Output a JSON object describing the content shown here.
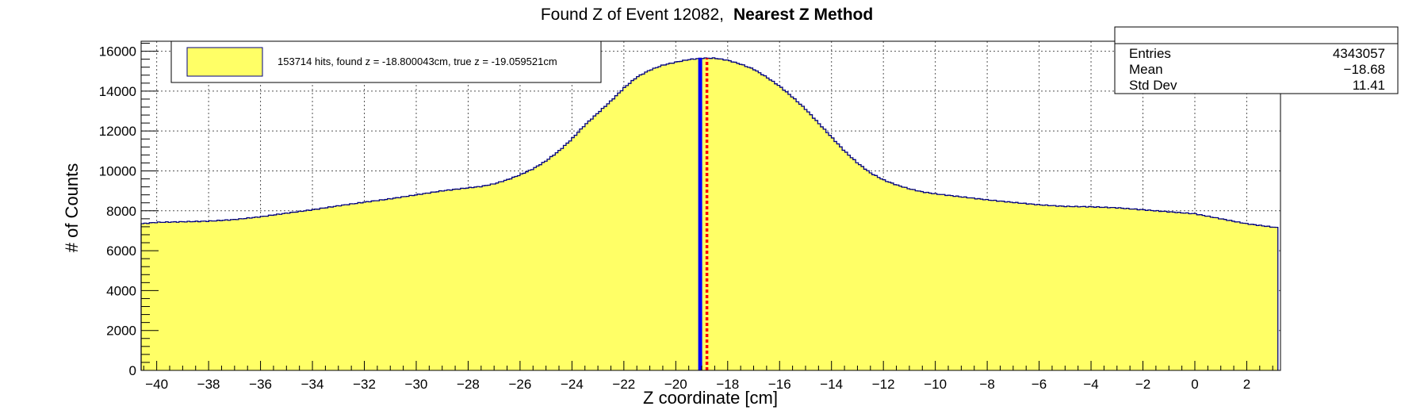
{
  "chart_data": {
    "type": "area",
    "title": "Found Z of Event 12082,",
    "title_bold": "Nearest Z Method",
    "xlabel": "Z coordinate [cm]",
    "ylabel": "# of Counts",
    "xlim": [
      -40.6,
      3.3
    ],
    "ylim": [
      0,
      16500
    ],
    "x_ticks": [
      -40,
      -38,
      -36,
      -34,
      -32,
      -30,
      -28,
      -26,
      -24,
      -22,
      -20,
      -18,
      -16,
      -14,
      -12,
      -10,
      -8,
      -6,
      -4,
      -2,
      0,
      2
    ],
    "y_ticks": [
      0,
      2000,
      4000,
      6000,
      8000,
      10000,
      12000,
      14000,
      16000
    ],
    "grid": true,
    "fill_color": "#ffff66",
    "line_color": "#000080",
    "series": [
      {
        "name": "153714 hits, found z = -18.800043cm, true z = -19.059521cm",
        "x": [
          -40.6,
          -40.0,
          -39.0,
          -38.0,
          -37.0,
          -36.0,
          -35.0,
          -34.0,
          -33.0,
          -32.0,
          -31.0,
          -30.0,
          -29.0,
          -28.0,
          -27.5,
          -27.0,
          -26.5,
          -26.0,
          -25.5,
          -25.0,
          -24.5,
          -24.0,
          -23.5,
          -23.0,
          -22.5,
          -22.0,
          -21.5,
          -21.0,
          -20.5,
          -20.0,
          -19.5,
          -19.0,
          -18.5,
          -18.0,
          -17.5,
          -17.0,
          -16.5,
          -16.0,
          -15.5,
          -15.0,
          -14.5,
          -14.0,
          -13.5,
          -13.0,
          -12.5,
          -12.0,
          -11.5,
          -11.0,
          -10.5,
          -10.0,
          -9.0,
          -8.0,
          -7.0,
          -6.0,
          -5.0,
          -4.0,
          -3.0,
          -2.0,
          -1.0,
          0.0,
          1.0,
          2.0,
          3.2
        ],
        "y": [
          7350,
          7420,
          7450,
          7480,
          7560,
          7700,
          7880,
          8050,
          8250,
          8430,
          8600,
          8800,
          9000,
          9150,
          9220,
          9350,
          9550,
          9800,
          10100,
          10500,
          11000,
          11600,
          12300,
          12900,
          13500,
          14150,
          14700,
          15050,
          15300,
          15450,
          15580,
          15650,
          15650,
          15550,
          15350,
          15100,
          14700,
          14250,
          13700,
          13100,
          12400,
          11700,
          11000,
          10400,
          9900,
          9550,
          9300,
          9100,
          8950,
          8850,
          8700,
          8550,
          8420,
          8300,
          8220,
          8200,
          8150,
          8050,
          7950,
          7850,
          7600,
          7350,
          7150
        ]
      }
    ],
    "found_z": -18.800043,
    "true_z": -19.059521,
    "found_z_color": "#ff0000",
    "true_z_color": "#0000ff"
  },
  "legend": {
    "entry_label": "153714 hits, found z = -18.800043cm, true z = -19.059521cm"
  },
  "stats": {
    "rows": [
      {
        "label": "Entries",
        "value": "4343057"
      },
      {
        "label": "Mean",
        "value": "−18.68"
      },
      {
        "label": "Std Dev",
        "value": "11.41"
      }
    ]
  }
}
